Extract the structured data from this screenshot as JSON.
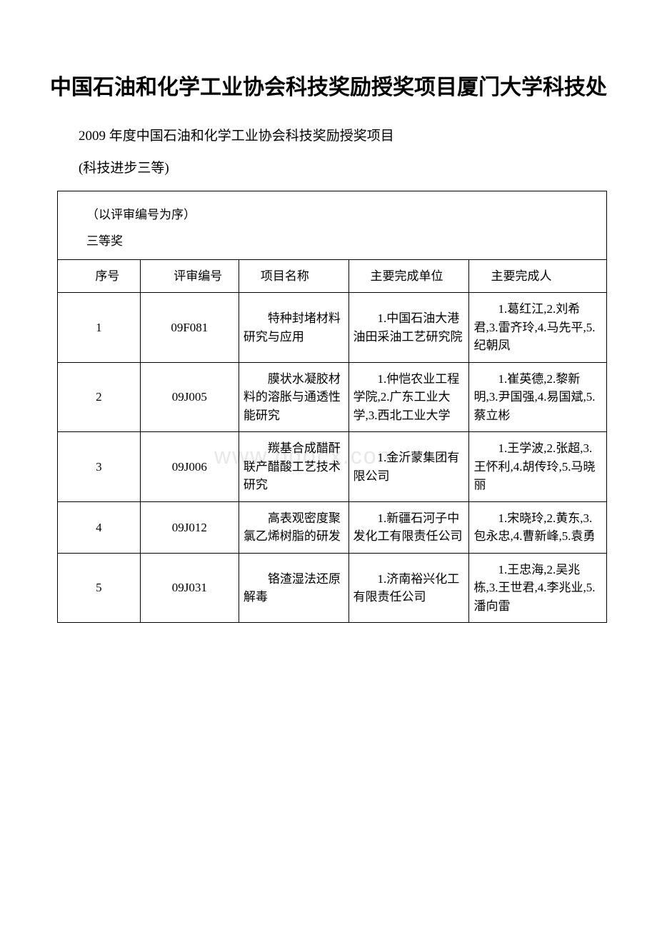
{
  "title": "中国石油和化学工业协会科技奖励授奖项目厦门大学科技处",
  "subtitle": "2009 年度中国石油和化学工业协会科技奖励授奖项目",
  "category": "(科技进步三等)",
  "sort_note": "（以评审编号为序）",
  "award_level": "三等奖",
  "watermark": "www.bdocx.com",
  "columns": {
    "seq": "序号",
    "code": "评审编号",
    "name": "项目名称",
    "unit": "主要完成单位",
    "person": "主要完成人"
  },
  "rows": [
    {
      "seq": "1",
      "code": "09F081",
      "name": "特种封堵材料研究与应用",
      "unit": "1.中国石油大港油田采油工艺研究院",
      "person": "1.葛红江,2.刘希君,3.雷齐玲,4.马先平,5.纪朝凤"
    },
    {
      "seq": "2",
      "code": "09J005",
      "name": "膜状水凝胶材料的溶胀与通透性能研究",
      "unit": "1.仲恺农业工程学院,2.广东工业大学,3.西北工业大学",
      "person": "1.崔英德,2.黎新明,3.尹国强,4.易国斌,5.蔡立彬"
    },
    {
      "seq": "3",
      "code": "09J006",
      "name": "羰基合成醋酐联产醋酸工艺技术研究",
      "unit": "1.金沂蒙集团有限公司",
      "person": "1.王学波,2.张超,3.王怀利,4.胡传玲,5.马晓丽"
    },
    {
      "seq": "4",
      "code": "09J012",
      "name": "高表观密度聚氯乙烯树脂的研发",
      "unit": "1.新疆石河子中发化工有限责任公司",
      "person": "1.宋晓玲,2.黄东,3.包永忠,4.曹新峰,5.袁勇"
    },
    {
      "seq": "5",
      "code": "09J031",
      "name": "铬渣湿法还原解毒",
      "unit": "1.济南裕兴化工有限责任公司",
      "person": "1.王忠海,2.吴兆栋,3.王世君,4.李兆业,5.潘向雷"
    }
  ]
}
